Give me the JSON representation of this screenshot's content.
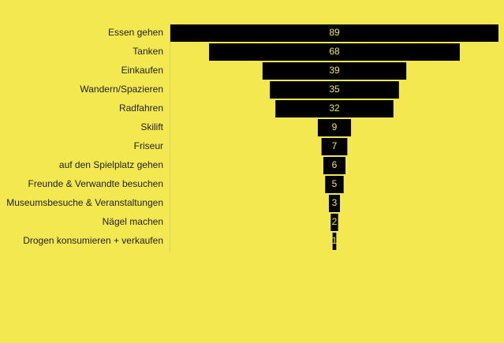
{
  "chart_data": {
    "type": "funnel",
    "categories": [
      "Essen gehen",
      "Tanken",
      "Einkaufen",
      "Wandern/Spazieren",
      "Radfahren",
      "Skilift",
      "Friseur",
      "auf den Spielplatz gehen",
      "Freunde & Verwandte besuchen",
      "Museumsbesuche & Veranstaltungen",
      "Nägel machen",
      "Drogen konsumieren + verkaufen"
    ],
    "values": [
      89,
      68,
      39,
      35,
      32,
      9,
      7,
      6,
      5,
      3,
      2,
      1
    ],
    "color": "#000000"
  }
}
